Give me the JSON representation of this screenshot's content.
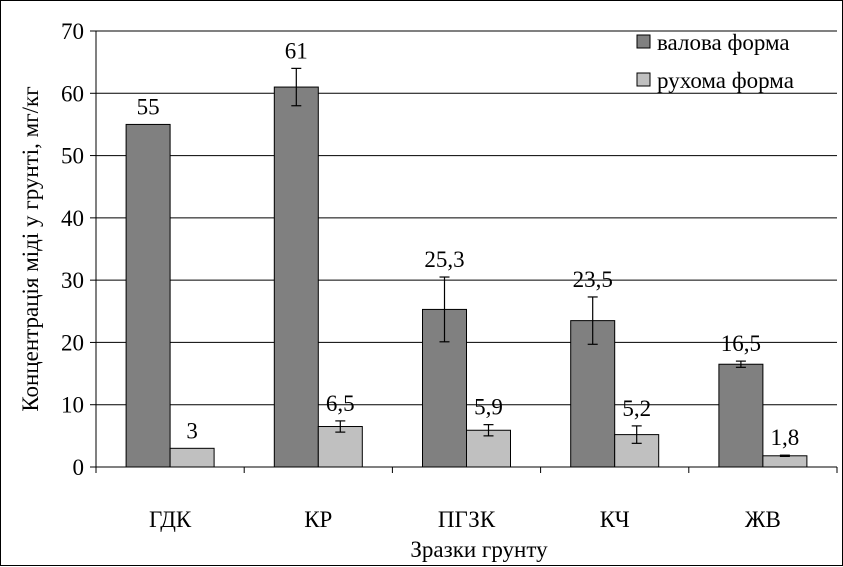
{
  "chart_data": {
    "type": "bar",
    "xlabel": "Зразки грунту",
    "ylabel": "Концентрація міді у грунті, мг/кг",
    "ylim": [
      0,
      70
    ],
    "yticks": [
      0,
      10,
      20,
      30,
      40,
      50,
      60,
      70
    ],
    "grid": true,
    "legend_position": "top-right",
    "categories": [
      "ГДК",
      "КР",
      "ПГЗК",
      "КЧ",
      "ЖВ"
    ],
    "series": [
      {
        "name": "валова форма",
        "color": "#808080",
        "values": [
          55,
          61,
          25.3,
          23.5,
          16.5
        ],
        "value_labels": [
          "55",
          "61",
          "25,3",
          "23,5",
          "16,5"
        ],
        "error": [
          null,
          3,
          5.2,
          3.8,
          0.5
        ]
      },
      {
        "name": "рухома форма",
        "color": "#c0c0c0",
        "values": [
          3,
          6.5,
          5.9,
          5.2,
          1.8
        ],
        "value_labels": [
          "3",
          "6,5",
          "5,9",
          "5,2",
          "1,8"
        ],
        "error": [
          null,
          0.9,
          0.9,
          1.4,
          0.1
        ]
      }
    ]
  }
}
